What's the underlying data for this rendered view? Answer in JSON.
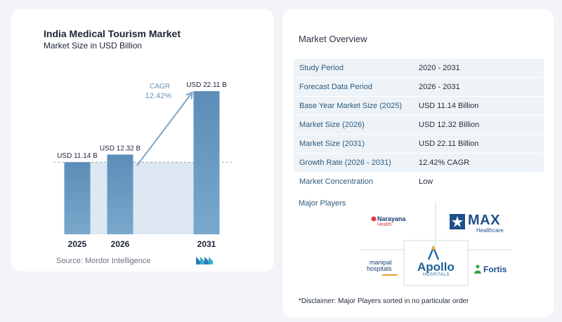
{
  "chart_data": {
    "type": "bar",
    "title": "India Medical Tourism Market",
    "subtitle": "Market Size in USD Billion",
    "categories": [
      "2025",
      "2026",
      "2031"
    ],
    "values": [
      11.14,
      12.32,
      22.11
    ],
    "data_labels": [
      "USD 11.14 B",
      "USD 12.32 B",
      "USD 22.11 B"
    ],
    "cagr_label": "CAGR",
    "cagr_value": "12.42%",
    "ylim": [
      0,
      22.11
    ],
    "colors": {
      "bar": "#5b8db8",
      "bar_light": "#7aa8cc",
      "area": "#dde8f2",
      "arrow": "#7ea6c8"
    }
  },
  "source": "Source:  Mordor Intelligence",
  "overview": {
    "title": "Market Overview",
    "rows": [
      {
        "label": "Study Period",
        "value": "2020 - 2031"
      },
      {
        "label": "Forecast Data Period",
        "value": "2026 - 2031"
      },
      {
        "label": "Base Year Market Size (2025)",
        "value": "USD 11.14 Billion"
      },
      {
        "label": "Market Size (2026)",
        "value": "USD 12.32 Billion"
      },
      {
        "label": "Market Size (2031)",
        "value": "USD 22.11 Billion"
      },
      {
        "label": "Growth Rate (2026 - 2031)",
        "value": "12.42% CAGR"
      },
      {
        "label": "Market Concentration",
        "value": "Low"
      }
    ]
  },
  "players": {
    "title": "Major Players",
    "narayana": {
      "line1": "Narayana",
      "line2": "Health"
    },
    "max": {
      "line1": "MAX",
      "line2": "Healthcare"
    },
    "manipal": {
      "line1": "manipal",
      "line2": "hospitals"
    },
    "apollo": {
      "line1": "Apollo",
      "line2": "HOSPITALS"
    },
    "fortis": {
      "line1": "Fortis"
    }
  },
  "disclaimer": "*Disclaimer: Major Players sorted in no particular order"
}
